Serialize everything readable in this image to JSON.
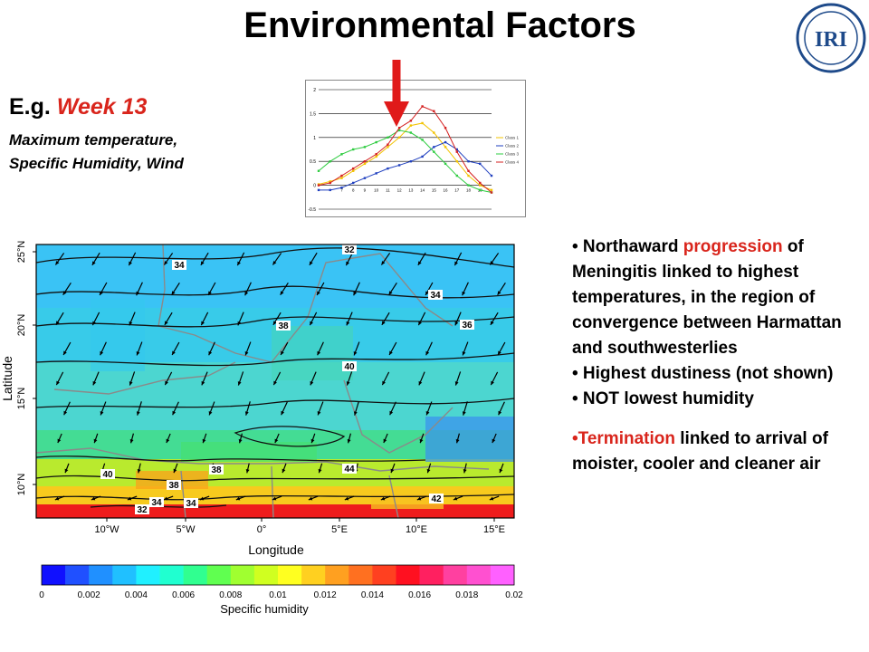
{
  "title": "Environmental Factors",
  "logo_text": "IRI",
  "eg_prefix": "E.g.",
  "eg_week": "Week 13",
  "subtitle_lines": [
    "Maximum temperature,",
    "Specific Humidity, Wind"
  ],
  "colors": {
    "accent": "#d9251c",
    "logo_blue": "#1e4a8a"
  },
  "inset_chart": {
    "type": "line",
    "x": [
      5,
      6,
      7,
      8,
      9,
      10,
      11,
      12,
      13,
      14,
      15,
      16,
      17,
      18,
      19,
      20
    ],
    "x_tick_labels": [
      "7",
      "8",
      "9",
      "10",
      "11",
      "12",
      "13",
      "14",
      "15",
      "16",
      "17",
      "18",
      "19"
    ],
    "y_tick_labels": [
      "2",
      "1.5",
      "1",
      "0.5",
      "0",
      "-0.5"
    ],
    "ylim": [
      -0.5,
      2
    ],
    "grid": true,
    "legend": "right",
    "series": [
      {
        "name": "Class 1",
        "color": "#f2c300",
        "values": [
          0.02,
          0.08,
          0.15,
          0.3,
          0.45,
          0.6,
          0.8,
          1.0,
          1.25,
          1.3,
          1.1,
          0.8,
          0.5,
          0.2,
          0.0,
          -0.1
        ]
      },
      {
        "name": "Class 2",
        "color": "#1f3fbf",
        "values": [
          -0.1,
          -0.1,
          -0.05,
          0.05,
          0.15,
          0.25,
          0.35,
          0.42,
          0.5,
          0.6,
          0.8,
          0.9,
          0.75,
          0.5,
          0.45,
          0.2
        ]
      },
      {
        "name": "Class 3",
        "color": "#2ecc40",
        "values": [
          0.3,
          0.5,
          0.65,
          0.75,
          0.8,
          0.9,
          1.0,
          1.15,
          1.1,
          0.95,
          0.7,
          0.45,
          0.2,
          0.0,
          -0.1,
          -0.15
        ]
      },
      {
        "name": "Class 4",
        "color": "#d42020",
        "values": [
          0.0,
          0.05,
          0.2,
          0.35,
          0.5,
          0.65,
          0.85,
          1.2,
          1.35,
          1.65,
          1.55,
          1.2,
          0.7,
          0.3,
          0.05,
          -0.15
        ]
      }
    ]
  },
  "map": {
    "ylabel": "Latitude",
    "xlabel": "Longitude",
    "lat_ticks": [
      "25°N",
      "20°N",
      "15°N",
      "10°N"
    ],
    "lon_ticks": [
      "10°W",
      "5°W",
      "0°",
      "5°E",
      "10°E",
      "15°E"
    ],
    "contour_labels": [
      "34",
      "32",
      "34",
      "38",
      "36",
      "40",
      "40",
      "38",
      "34",
      "32",
      "34",
      "38",
      "44",
      "42"
    ],
    "band_colors": [
      "#3ac3f5",
      "#38cbe9",
      "#4cd6d0",
      "#44dc94",
      "#b9ea2e",
      "#f7ca1e",
      "#ee1c1c"
    ]
  },
  "colorbar": {
    "title": "Specific humidity",
    "ticks": [
      "0",
      "0.002",
      "0.004",
      "0.006",
      "0.008",
      "0.01",
      "0.012",
      "0.014",
      "0.016",
      "0.018",
      "0.02"
    ],
    "colors": [
      "#1010ff",
      "#2050ff",
      "#2090ff",
      "#20c0ff",
      "#20f0ff",
      "#20ffd0",
      "#30ff90",
      "#60ff50",
      "#a0ff30",
      "#d0ff20",
      "#ffff20",
      "#ffd020",
      "#ffa020",
      "#ff7020",
      "#ff4020",
      "#ff1020",
      "#ff2060",
      "#ff40a0",
      "#ff50d0",
      "#ff60ff"
    ]
  },
  "bullets": {
    "b1_pre": "• Northaward ",
    "b1_red": "progression",
    "b1_post": " of Meningitis linked to highest temperatures, in the region of convergence between Harmattan and southwesterlies",
    "b2": "• Highest dustiness (not shown)",
    "b3": "• NOT lowest humidity",
    "b4_red": "•Termination",
    "b4_post": " linked to arrival of moister, cooler and cleaner air"
  }
}
